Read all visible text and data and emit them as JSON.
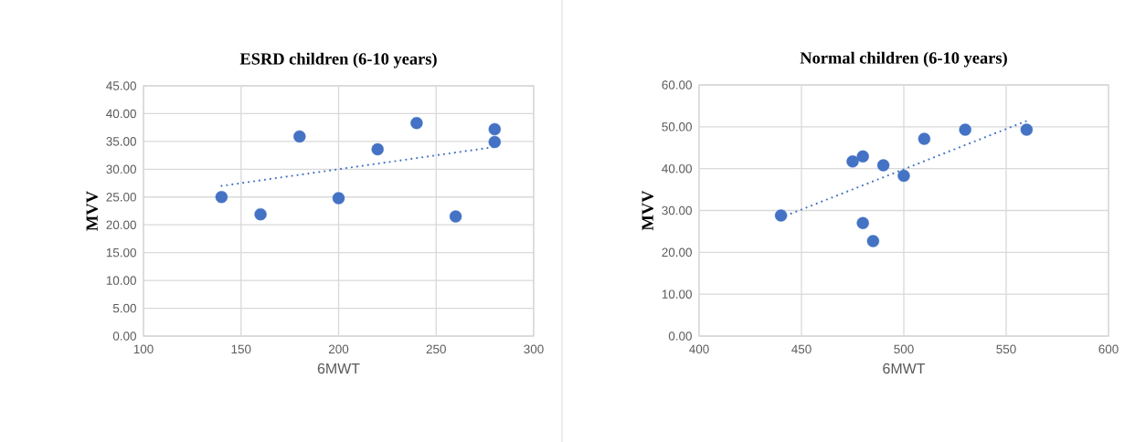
{
  "chart_data": [
    {
      "type": "scatter",
      "title": "ESRD children (6-10 years)",
      "xlabel": "6MWT",
      "ylabel": "MVV",
      "xlim": [
        100,
        300
      ],
      "xticks": [
        100,
        150,
        200,
        250,
        300
      ],
      "ylim": [
        0,
        45
      ],
      "yticks": [
        {
          "value": 0,
          "label": "0.00"
        },
        {
          "value": 5,
          "label": "5.00"
        },
        {
          "value": 10,
          "label": "10.00"
        },
        {
          "value": 15,
          "label": "15.00"
        },
        {
          "value": 20,
          "label": "20.00"
        },
        {
          "value": 25,
          "label": "25.00"
        },
        {
          "value": 30,
          "label": "30.00"
        },
        {
          "value": 35,
          "label": "35.00"
        },
        {
          "value": 40,
          "label": "40.00"
        },
        {
          "value": 45,
          "label": "45.00"
        }
      ],
      "grid": true,
      "marker": "circle",
      "series": [
        {
          "color": "#4472c4",
          "x": [
            140,
            160,
            180,
            200,
            220,
            240,
            260,
            280,
            280
          ],
          "values": [
            25.0,
            21.9,
            35.9,
            24.8,
            33.6,
            38.3,
            21.5,
            37.2,
            34.9
          ]
        },
        {
          "type": "line",
          "color": "#4472c4",
          "line_style": "dotted",
          "marker": "none",
          "x": [
            140,
            280
          ],
          "values": [
            27.0,
            34.0
          ]
        }
      ]
    },
    {
      "type": "scatter",
      "title": "Normal children (6-10 years)",
      "xlabel": "6MWT",
      "ylabel": "MVV",
      "xlim": [
        400,
        600
      ],
      "xticks": [
        400,
        450,
        500,
        550,
        600
      ],
      "ylim": [
        0,
        60
      ],
      "yticks": [
        {
          "value": 0,
          "label": "0.00"
        },
        {
          "value": 10,
          "label": "10.00"
        },
        {
          "value": 20,
          "label": "20.00"
        },
        {
          "value": 30,
          "label": "30.00"
        },
        {
          "value": 40,
          "label": "40.00"
        },
        {
          "value": 50,
          "label": "50.00"
        },
        {
          "value": 60,
          "label": "60.00"
        }
      ],
      "grid": true,
      "marker": "circle",
      "series": [
        {
          "color": "#4472c4",
          "x": [
            440,
            475,
            480,
            480,
            485,
            490,
            500,
            510,
            530,
            560
          ],
          "values": [
            28.8,
            41.7,
            42.9,
            27.0,
            22.7,
            40.8,
            38.3,
            47.1,
            49.3,
            49.3
          ]
        },
        {
          "type": "line",
          "color": "#4472c4",
          "line_style": "dotted",
          "marker": "none",
          "x": [
            440,
            560
          ],
          "values": [
            28.3,
            51.4
          ]
        }
      ]
    }
  ]
}
